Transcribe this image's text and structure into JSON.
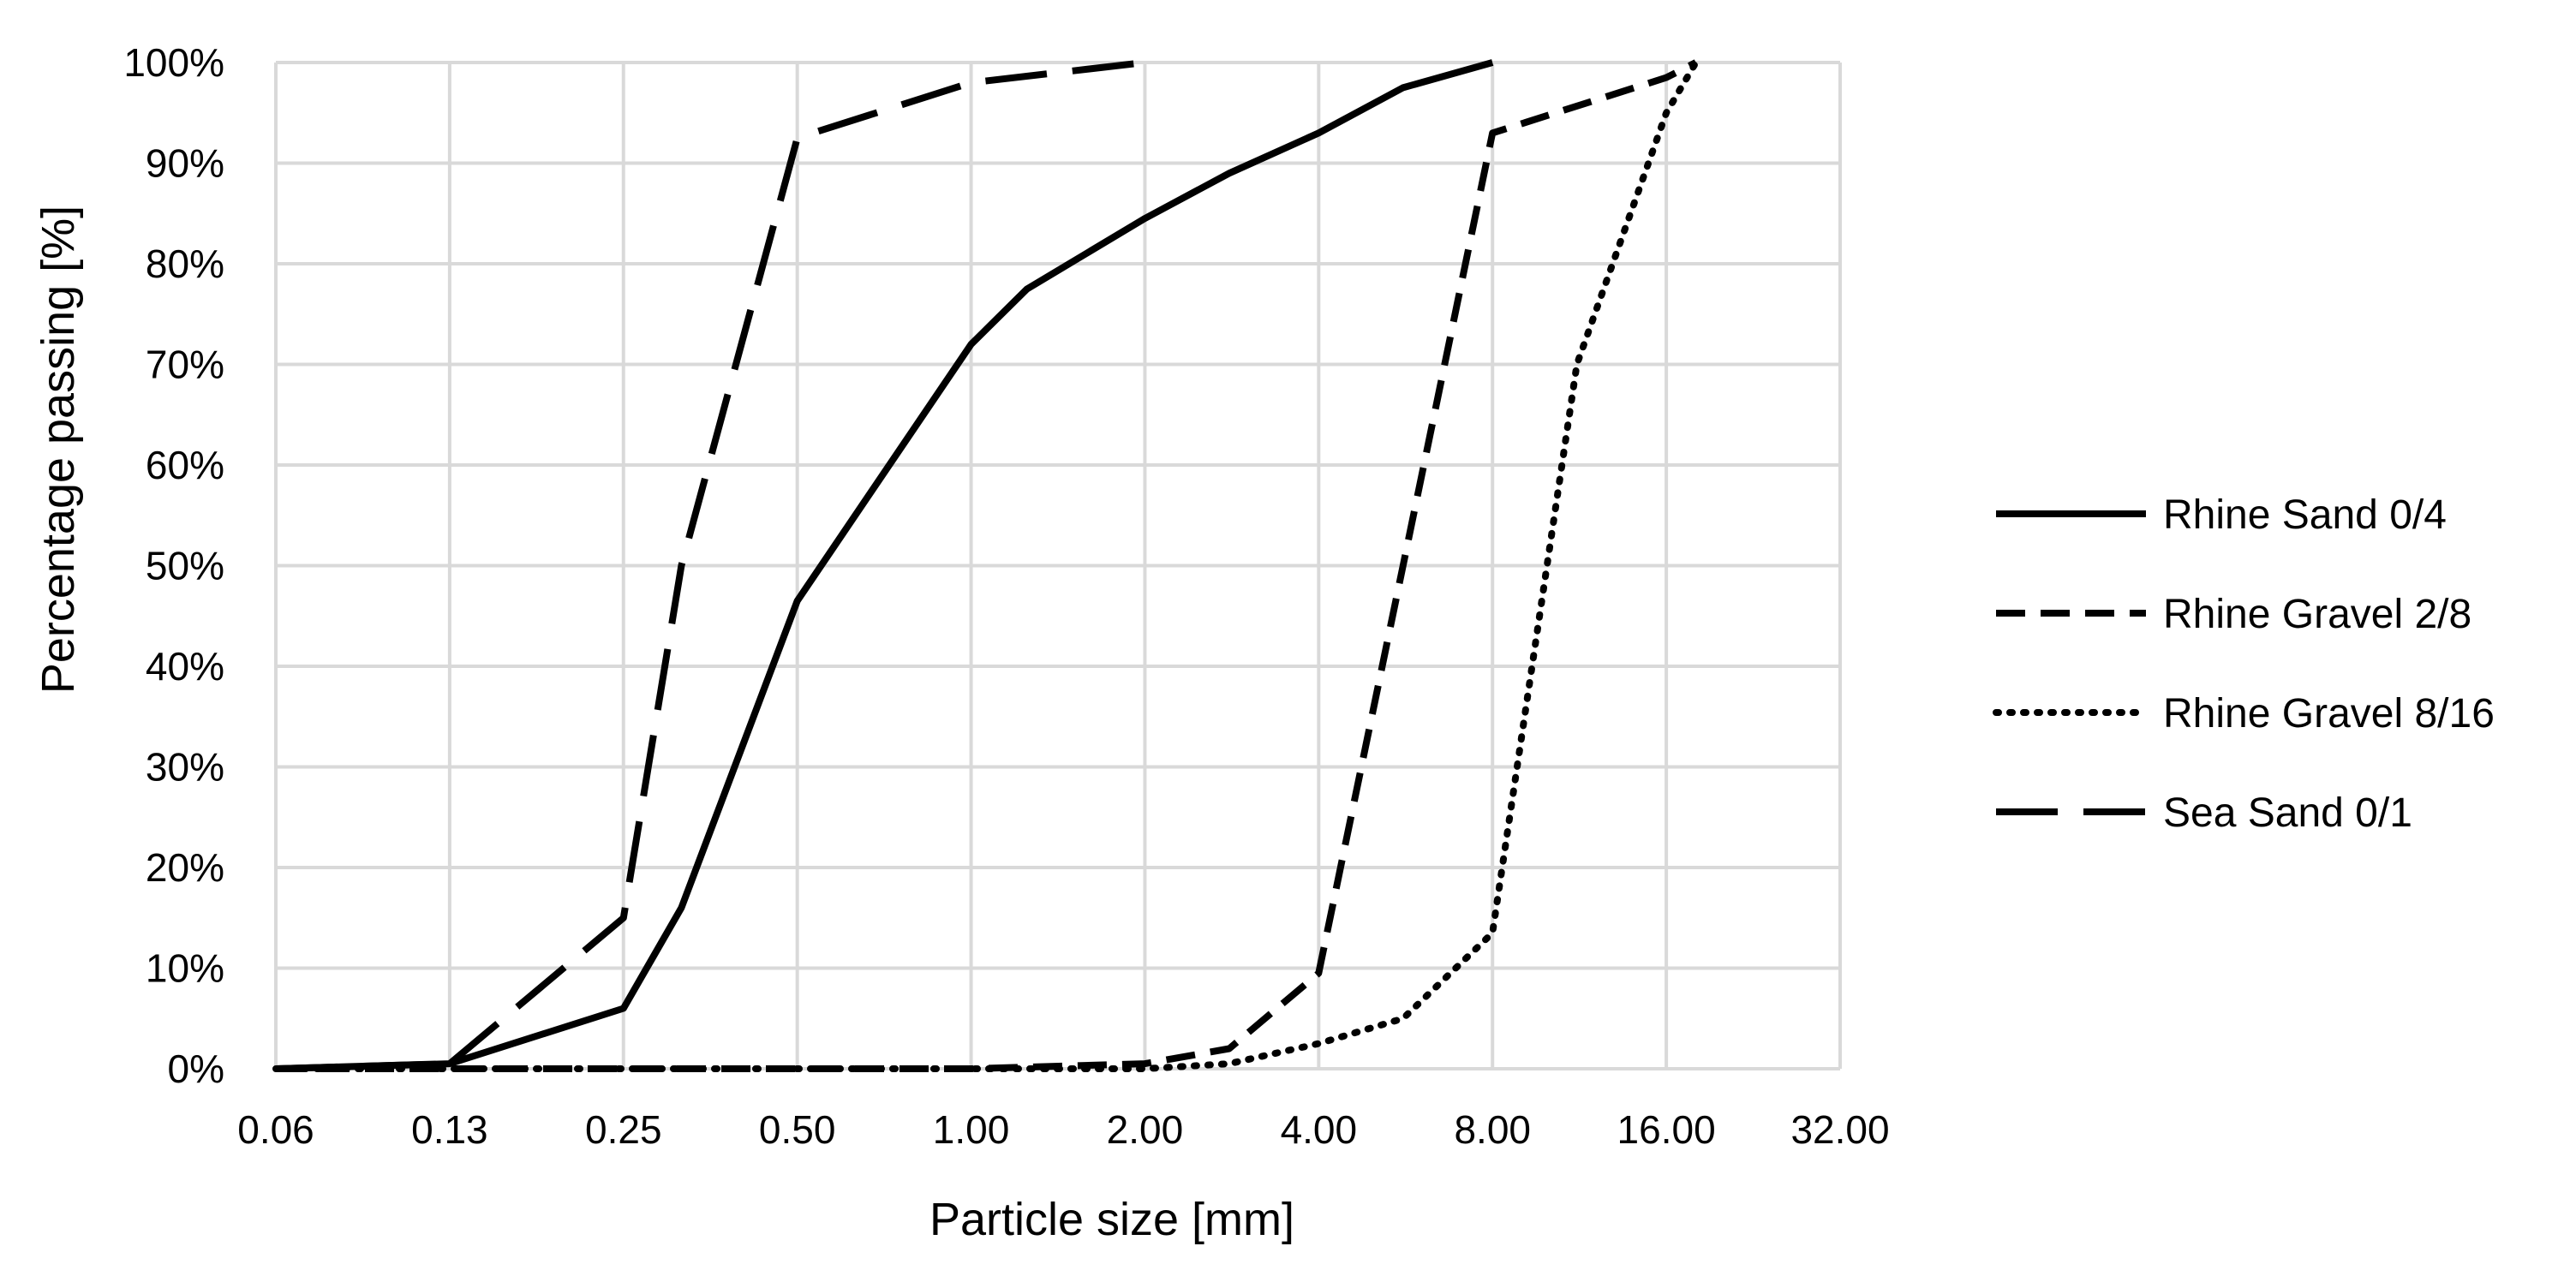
{
  "chart_data": {
    "type": "line",
    "title": "",
    "xlabel": "Particle size [mm]",
    "ylabel": "Percentage passing [%]",
    "xscale": "log2",
    "xlim": [
      0.0625,
      32
    ],
    "ylim": [
      0,
      100
    ],
    "grid": true,
    "legend_position": "right",
    "x_ticks": [
      {
        "value": 0.0625,
        "label": "0.06"
      },
      {
        "value": 0.125,
        "label": "0.13"
      },
      {
        "value": 0.25,
        "label": "0.25"
      },
      {
        "value": 0.5,
        "label": "0.50"
      },
      {
        "value": 1,
        "label": "1.00"
      },
      {
        "value": 2,
        "label": "2.00"
      },
      {
        "value": 4,
        "label": "4.00"
      },
      {
        "value": 8,
        "label": "8.00"
      },
      {
        "value": 16,
        "label": "16.00"
      },
      {
        "value": 32,
        "label": "32.00"
      }
    ],
    "y_ticks": [
      {
        "value": 0,
        "label": "0%"
      },
      {
        "value": 10,
        "label": "10%"
      },
      {
        "value": 20,
        "label": "20%"
      },
      {
        "value": 30,
        "label": "30%"
      },
      {
        "value": 40,
        "label": "40%"
      },
      {
        "value": 50,
        "label": "50%"
      },
      {
        "value": 60,
        "label": "60%"
      },
      {
        "value": 70,
        "label": "70%"
      },
      {
        "value": 80,
        "label": "80%"
      },
      {
        "value": 90,
        "label": "90%"
      },
      {
        "value": 100,
        "label": "100%"
      }
    ],
    "series": [
      {
        "name": "Rhine Sand 0/4",
        "style": "solid",
        "x": [
          0.0625,
          0.125,
          0.25,
          0.315,
          0.5,
          1,
          1.25,
          2,
          2.8,
          4,
          5.6,
          8
        ],
        "y": [
          0,
          0.5,
          6,
          16,
          46.5,
          72,
          77.5,
          84.5,
          89,
          93,
          97.5,
          100
        ]
      },
      {
        "name": "Rhine Gravel 2/8",
        "style": "dashed",
        "x": [
          0.0625,
          0.125,
          0.25,
          0.5,
          1,
          2,
          2.8,
          4,
          5.6,
          8,
          16,
          18
        ],
        "y": [
          0,
          0,
          0,
          0,
          0,
          0.5,
          2,
          9.5,
          50,
          93,
          98.5,
          100
        ]
      },
      {
        "name": "Rhine Gravel 8/16",
        "style": "dotted",
        "x": [
          0.0625,
          0.125,
          0.25,
          0.5,
          1,
          2,
          2.8,
          4,
          5.6,
          8,
          11.2,
          16,
          18
        ],
        "y": [
          0,
          0,
          0,
          0,
          0,
          0,
          0.5,
          2.5,
          5,
          13.5,
          70,
          95,
          100
        ]
      },
      {
        "name": "Sea Sand 0/1",
        "style": "long-dash",
        "x": [
          0.0625,
          0.125,
          0.25,
          0.315,
          0.5,
          1,
          2
        ],
        "y": [
          0,
          0.5,
          15,
          50,
          92.5,
          98,
          100
        ]
      }
    ]
  }
}
